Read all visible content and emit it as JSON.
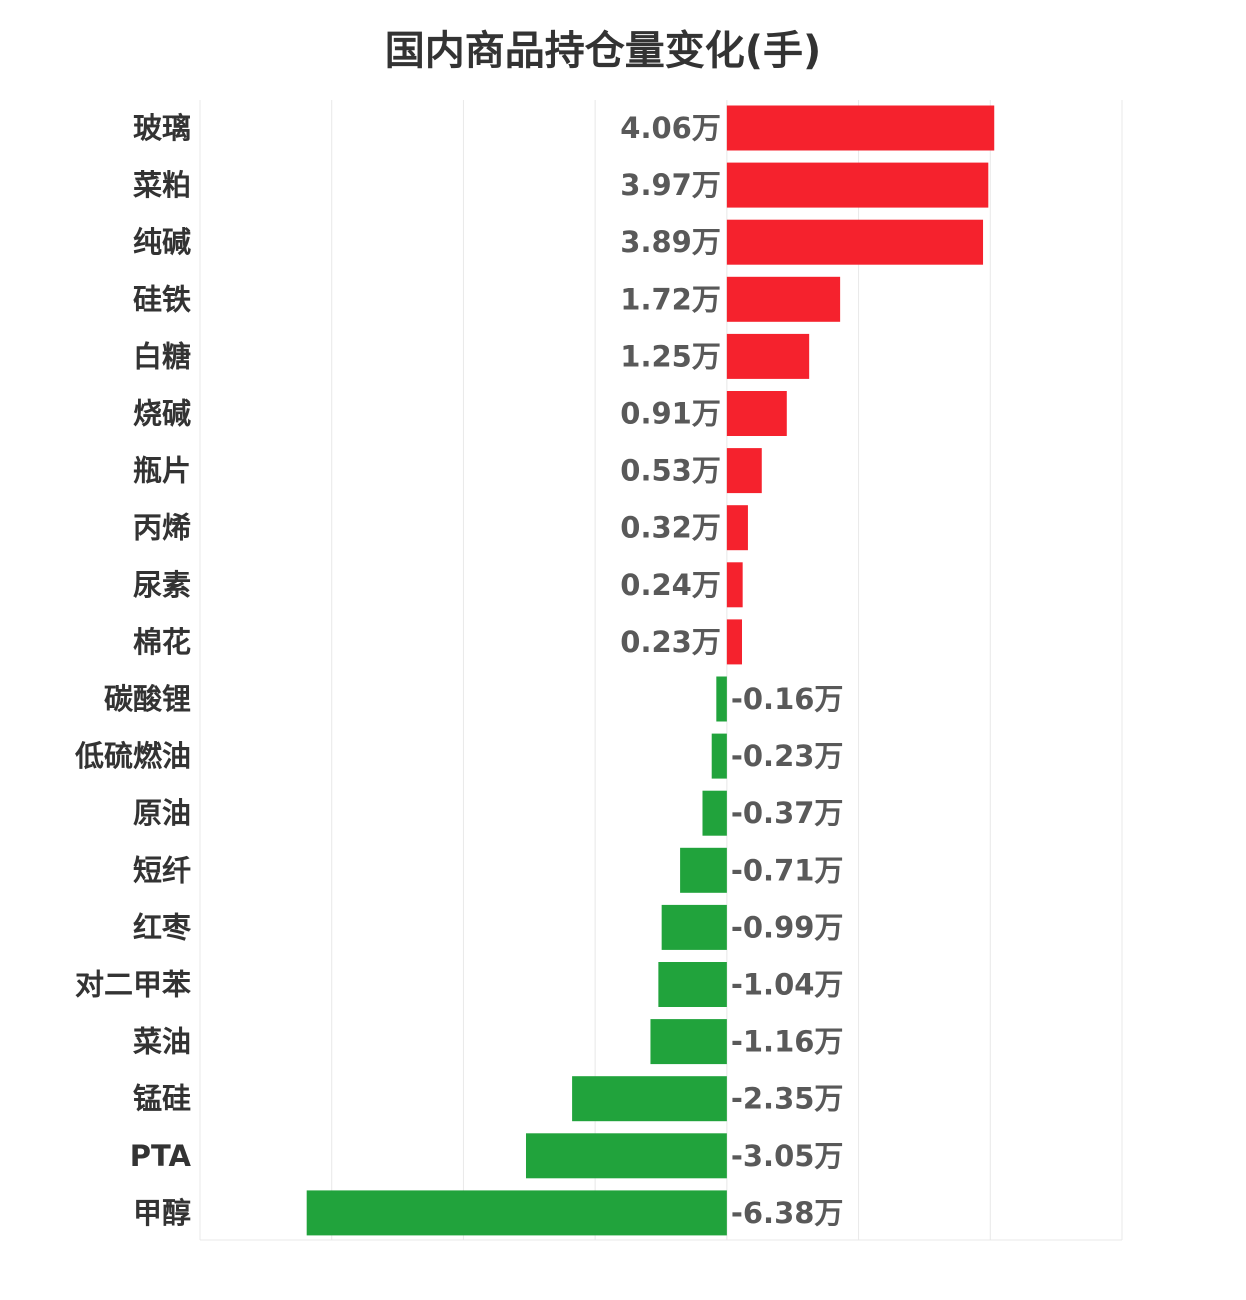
{
  "chart_data": {
    "type": "bar",
    "orientation": "horizontal",
    "title": "国内商品持仓量变化(手)",
    "unit_suffix": "万",
    "categories": [
      "玻璃",
      "菜粕",
      "纯碱",
      "硅铁",
      "白糖",
      "烧碱",
      "瓶片",
      "丙烯",
      "尿素",
      "棉花",
      "碳酸锂",
      "低硫燃油",
      "原油",
      "短纤",
      "红枣",
      "对二甲苯",
      "菜油",
      "锰硅",
      "PTA",
      "甲醇"
    ],
    "values": [
      4.06,
      3.97,
      3.89,
      1.72,
      1.25,
      0.91,
      0.53,
      0.32,
      0.24,
      0.23,
      -0.16,
      -0.23,
      -0.37,
      -0.71,
      -0.99,
      -1.04,
      -1.16,
      -2.35,
      -3.05,
      -6.38
    ],
    "value_labels": [
      "4.06万",
      "3.97万",
      "3.89万",
      "1.72万",
      "1.25万",
      "0.91万",
      "0.53万",
      "0.32万",
      "0.24万",
      "0.23万",
      "-0.16万",
      "-0.23万",
      "-0.37万",
      "-0.71万",
      "-0.99万",
      "-1.04万",
      "-1.16万",
      "-2.35万",
      "-3.05万",
      "-6.38万"
    ],
    "xlim": [
      -8,
      6
    ],
    "gridlines": [
      -8,
      -6,
      -4,
      -2,
      0,
      2,
      4,
      6
    ],
    "grid": true,
    "legend": "none",
    "colors": {
      "positive": "#f5222d",
      "negative": "#21a33c",
      "grid": "#e8e8e8"
    }
  }
}
